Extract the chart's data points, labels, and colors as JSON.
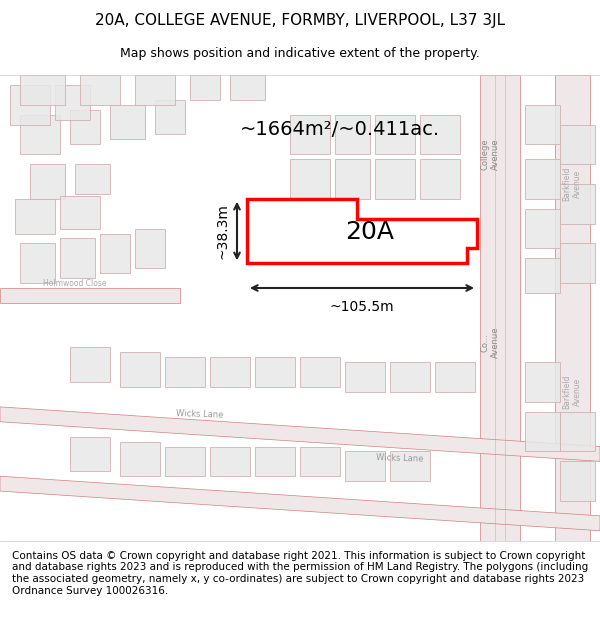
{
  "title": "20A, COLLEGE AVENUE, FORMBY, LIVERPOOL, L37 3JL",
  "subtitle": "Map shows position and indicative extent of the property.",
  "footer": "Contains OS data © Crown copyright and database right 2021. This information is subject to Crown copyright and database rights 2023 and is reproduced with the permission of HM Land Registry. The polygons (including the associated geometry, namely x, y co-ordinates) are subject to Crown copyright and database rights 2023 Ordnance Survey 100026316.",
  "area_label": "~1664m²/~0.411ac.",
  "width_label": "~105.5m",
  "height_label": "~38.3m",
  "plot_label": "20A",
  "bg_color": "#f5f0f0",
  "map_bg": "#ffffff",
  "road_color": "#e8a0a0",
  "road_color2": "#d08080",
  "building_fill": "#e0e0e0",
  "building_edge": "#c0b0b0",
  "plot_color": "#ff0000",
  "arrow_color": "#222222",
  "title_fontsize": 11,
  "subtitle_fontsize": 9,
  "footer_fontsize": 7.5,
  "label_fontsize": 13
}
